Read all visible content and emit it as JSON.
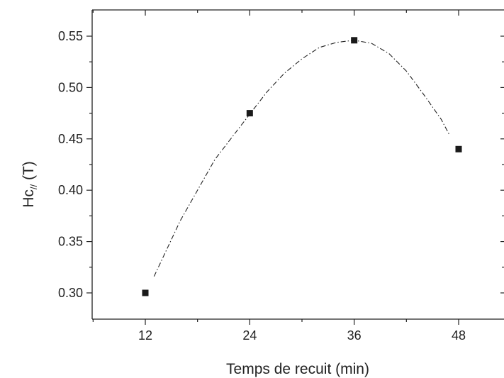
{
  "chart_data": {
    "type": "scatter",
    "x_label": "Temps de recuit (min)",
    "y_label_main": "Hc",
    "y_label_sub": "//",
    "y_label_unit": " (T)",
    "xlim": [
      6,
      54
    ],
    "ylim": [
      0.275,
      0.575
    ],
    "x_ticks": [
      12,
      24,
      36,
      48
    ],
    "x_tick_labels": [
      "12",
      "24",
      "36",
      "48"
    ],
    "y_ticks": [
      0.3,
      0.35,
      0.4,
      0.45,
      0.5,
      0.55
    ],
    "y_tick_labels": [
      "0.30",
      "0.35",
      "0.40",
      "0.45",
      "0.50",
      "0.55"
    ],
    "x_minor_ticks": [
      6,
      18,
      30,
      42,
      54
    ],
    "y_minor_ticks": [
      0.325,
      0.375,
      0.425,
      0.475,
      0.525
    ],
    "series": [
      {
        "marker": "square",
        "color": "#1a1a1a",
        "x": [
          12,
          24,
          36,
          48
        ],
        "y": [
          0.3,
          0.475,
          0.546,
          0.44
        ]
      }
    ],
    "fit_curve": {
      "style": "dash-dot",
      "color": "#222222",
      "x": [
        13,
        16,
        20,
        24,
        26,
        28,
        30,
        32,
        34,
        36,
        38,
        40,
        42,
        44,
        46,
        47
      ],
      "y": [
        0.316,
        0.37,
        0.43,
        0.474,
        0.496,
        0.514,
        0.528,
        0.539,
        0.544,
        0.546,
        0.543,
        0.533,
        0.516,
        0.493,
        0.469,
        0.453
      ]
    },
    "grid": false,
    "legend": "none"
  }
}
